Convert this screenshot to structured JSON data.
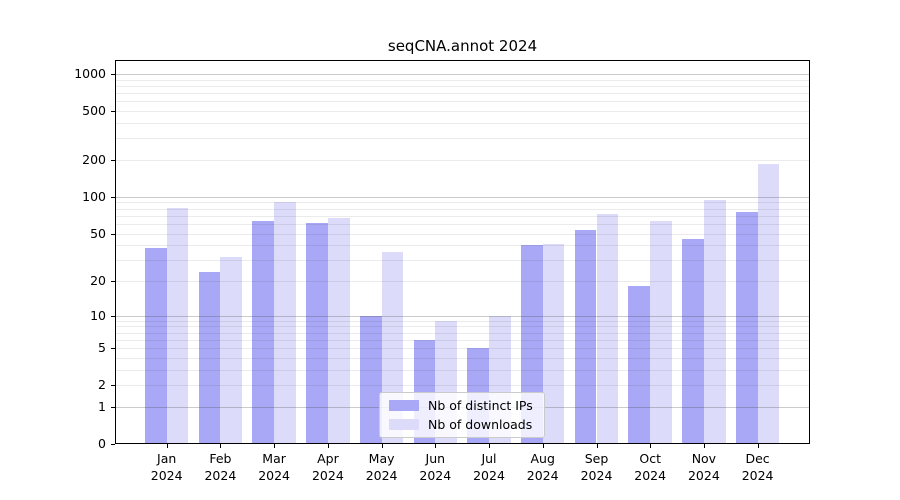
{
  "chart_data": {
    "type": "bar",
    "title": "seqCNA.annot 2024",
    "categories": [
      "Jan",
      "Feb",
      "Mar",
      "Apr",
      "May",
      "Jun",
      "Jul",
      "Aug",
      "Sep",
      "Oct",
      "Nov",
      "Dec"
    ],
    "category_sublabel": "2024",
    "series": [
      {
        "name": "Nb of distinct IPs",
        "color": "#a8a8f7",
        "values": [
          38,
          24,
          63,
          61,
          10,
          6,
          5,
          40,
          53,
          18,
          45,
          75
        ]
      },
      {
        "name": "Nb of downloads",
        "color": "#dcdcfa",
        "values": [
          81,
          32,
          90,
          67,
          35,
          9,
          10,
          41,
          72,
          63,
          95,
          187
        ]
      }
    ],
    "xlabel": "",
    "ylabel": "",
    "y_axis": {
      "scale": "log1p",
      "tick_values": [
        0,
        1,
        2,
        5,
        10,
        20,
        50,
        100,
        200,
        500,
        1000
      ],
      "range": [
        0,
        1300
      ],
      "major_gridlines": [
        1,
        10,
        100,
        1000
      ],
      "minor_gridlines": [
        2,
        3,
        4,
        5,
        6,
        7,
        8,
        9,
        20,
        30,
        40,
        50,
        60,
        70,
        80,
        90,
        200,
        300,
        400,
        500,
        600,
        700,
        800,
        900
      ]
    },
    "legend": {
      "position": "lower-center"
    },
    "grid": "on",
    "colors": {
      "major_grid": "rgba(70,70,70,0.28)",
      "minor_grid": "rgba(60,60,60,0.10)",
      "axis": "#000000",
      "background": "#ffffff"
    }
  }
}
